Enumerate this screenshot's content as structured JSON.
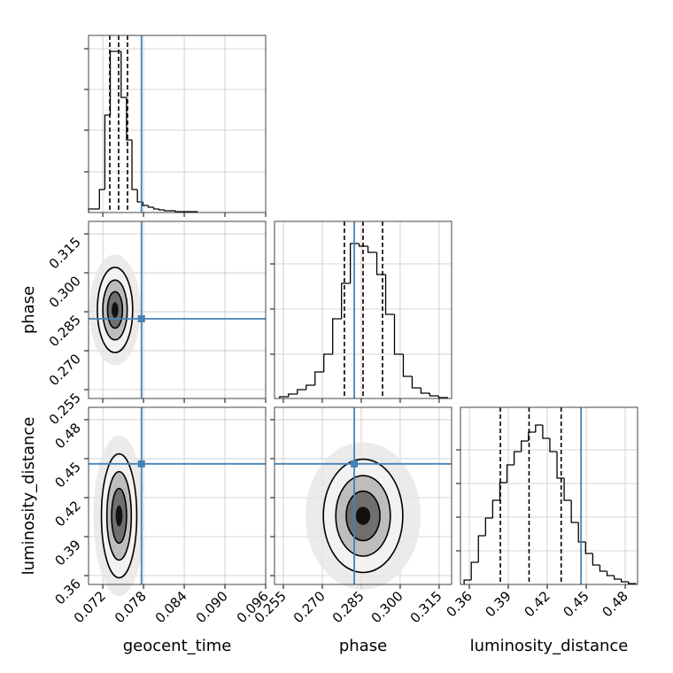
{
  "chart_data": {
    "type": "corner",
    "truth_color": "#4682b4",
    "grid": true,
    "parameters": [
      {
        "name": "geocent_time",
        "lim": [
          0.0699,
          0.096
        ],
        "ticks": [
          0.072,
          0.078,
          0.084,
          {
            "value": 0.09,
            "label": "0.090"
          },
          0.096
        ],
        "truth": 0.0777,
        "quantiles": [
          0.07303,
          0.07433,
          0.07564
        ],
        "hist": {
          "bins": [
            0.0699,
            0.0707,
            0.0715,
            0.0723,
            0.0731,
            0.0739,
            0.0747,
            0.0755,
            0.0763,
            0.0771,
            0.0779,
            0.0787,
            0.0795,
            0.0803,
            0.0811,
            0.0819,
            0.0827,
            0.0835,
            0.0843,
            0.0851,
            0.0859
          ],
          "values": [
            4,
            4,
            26,
            110,
            182,
            182,
            130,
            82,
            26,
            12,
            8,
            6,
            4,
            3,
            2,
            2,
            1,
            1,
            1,
            1
          ],
          "ylim": [
            0,
            200
          ],
          "yticks": [
            46,
            93,
            139,
            185
          ]
        }
      },
      {
        "name": "phase",
        "lim": [
          0.2516,
          0.3198
        ],
        "ticks": [
          0.255,
          {
            "value": 0.27,
            "label": "0.270"
          },
          0.285,
          {
            "value": 0.3,
            "label": "0.300"
          },
          0.315
        ],
        "truth": 0.2823,
        "quantiles": [
          0.2785,
          0.2857,
          0.2932
        ],
        "hist": {
          "bins": [
            0.2536,
            0.257,
            0.2604,
            0.2638,
            0.2672,
            0.2706,
            0.274,
            0.2774,
            0.2808,
            0.2842,
            0.2876,
            0.291,
            0.2944,
            0.2978,
            0.3012,
            0.3046,
            0.308,
            0.3114,
            0.3148,
            0.3182
          ],
          "values": [
            2,
            5,
            10,
            15,
            30,
            50,
            90,
            130,
            175,
            172,
            165,
            140,
            95,
            50,
            25,
            12,
            6,
            3,
            1
          ],
          "ylim": [
            0,
            200
          ],
          "yticks": [
            50,
            101,
            152
          ]
        }
      },
      {
        "name": "luminosity_distance",
        "lim": [
          0.3532,
          0.4895
        ],
        "ticks": [
          0.36,
          0.39,
          0.42,
          0.45,
          0.48
        ],
        "truth": 0.446,
        "quantiles": [
          0.3839,
          0.406,
          0.4307
        ],
        "hist": {
          "bins": [
            0.356,
            0.3615,
            0.367,
            0.3725,
            0.378,
            0.3835,
            0.389,
            0.3945,
            0.4,
            0.4055,
            0.411,
            0.4165,
            0.422,
            0.4275,
            0.433,
            0.4385,
            0.444,
            0.4495,
            0.455,
            0.4605,
            0.466,
            0.4715,
            0.477,
            0.4825,
            0.488
          ],
          "values": [
            5,
            25,
            55,
            75,
            95,
            115,
            135,
            150,
            162,
            172,
            180,
            165,
            150,
            120,
            95,
            70,
            48,
            35,
            22,
            15,
            10,
            6,
            3,
            1
          ],
          "ylim": [
            0,
            200
          ],
          "yticks": [
            38,
            76,
            114,
            152
          ]
        }
      }
    ],
    "panels": [
      {
        "center": [
          0.0738,
          0.2857
        ],
        "contours": [
          [
            0.0026,
            0.0164
          ],
          [
            0.0018,
            0.0115
          ],
          [
            0.0011,
            0.007
          ],
          [
            0.0005,
            0.003
          ]
        ]
      },
      {
        "center": [
          0.0744,
          0.406
        ],
        "contours": [
          [
            0.0026,
            0.0477
          ],
          [
            0.0018,
            0.034
          ],
          [
            0.0011,
            0.021
          ],
          [
            0.0005,
            0.008
          ]
        ]
      },
      {
        "center": [
          0.2857,
          0.406
        ],
        "contours": [
          [
            0.0153,
            0.0436
          ],
          [
            0.0105,
            0.031
          ],
          [
            0.0065,
            0.019
          ],
          [
            0.0028,
            0.007
          ]
        ]
      }
    ]
  }
}
